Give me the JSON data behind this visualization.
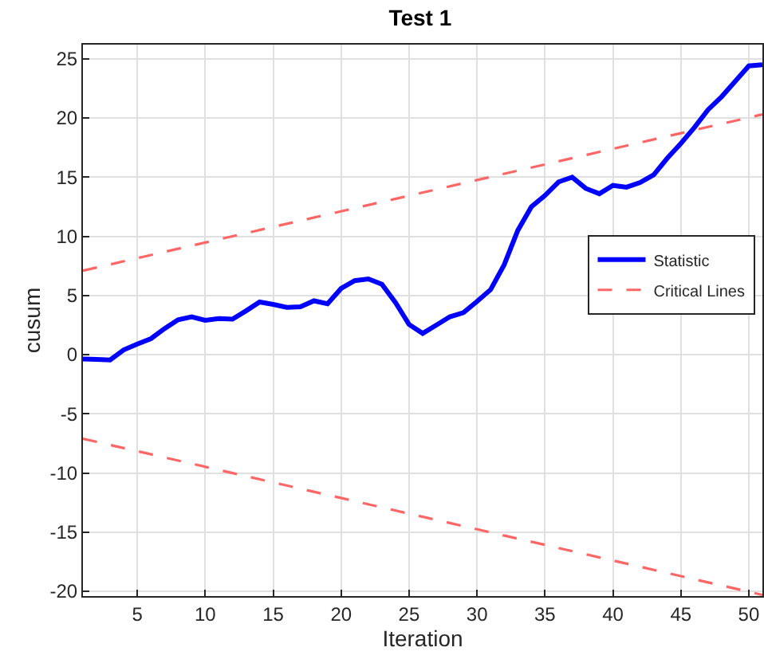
{
  "chart_data": {
    "type": "line",
    "title": "Test 1",
    "xlabel": "Iteration",
    "ylabel": "cusum",
    "xlim": [
      1,
      51
    ],
    "ylim": [
      -20.4,
      26.2
    ],
    "xticks": [
      5,
      10,
      15,
      20,
      25,
      30,
      35,
      40,
      45,
      50
    ],
    "yticks": [
      -20,
      -15,
      -10,
      -5,
      0,
      5,
      10,
      15,
      20,
      25
    ],
    "grid": true,
    "legend": "right",
    "marker": "none",
    "series": [
      {
        "name": "Statistic",
        "color": "#0000ff",
        "line_style": "solid",
        "x": [
          1,
          2,
          3,
          4,
          5,
          6,
          7,
          8,
          9,
          10,
          11,
          12,
          13,
          14,
          15,
          16,
          17,
          18,
          19,
          20,
          21,
          22,
          23,
          24,
          25,
          26,
          27,
          28,
          29,
          30,
          31,
          32,
          33,
          34,
          35,
          36,
          37,
          38,
          39,
          40,
          41,
          42,
          43,
          44,
          45,
          46,
          47,
          48,
          49,
          50,
          51
        ],
        "values": [
          -0.36,
          -0.4,
          -0.45,
          0.4,
          0.9,
          1.35,
          2.2,
          2.95,
          3.2,
          2.9,
          3.05,
          3.0,
          3.7,
          4.45,
          4.25,
          4.0,
          4.05,
          4.55,
          4.3,
          5.6,
          6.25,
          6.4,
          5.95,
          4.4,
          2.55,
          1.8,
          2.5,
          3.2,
          3.55,
          4.5,
          5.5,
          7.6,
          10.5,
          12.5,
          13.45,
          14.6,
          15.0,
          14.05,
          13.6,
          14.3,
          14.15,
          14.55,
          15.2,
          16.6,
          17.85,
          19.2,
          20.7,
          21.8,
          23.1,
          24.4,
          24.5
        ]
      },
      {
        "name": "Critical Lines",
        "color": "#ff6666",
        "line_style": "dashed",
        "x": [
          1,
          51
        ],
        "values": [
          7.1,
          20.3
        ]
      },
      {
        "color": "#ff6666",
        "line_style": "dashed",
        "x": [
          1,
          51
        ],
        "values": [
          -7.1,
          -20.3
        ]
      }
    ]
  }
}
